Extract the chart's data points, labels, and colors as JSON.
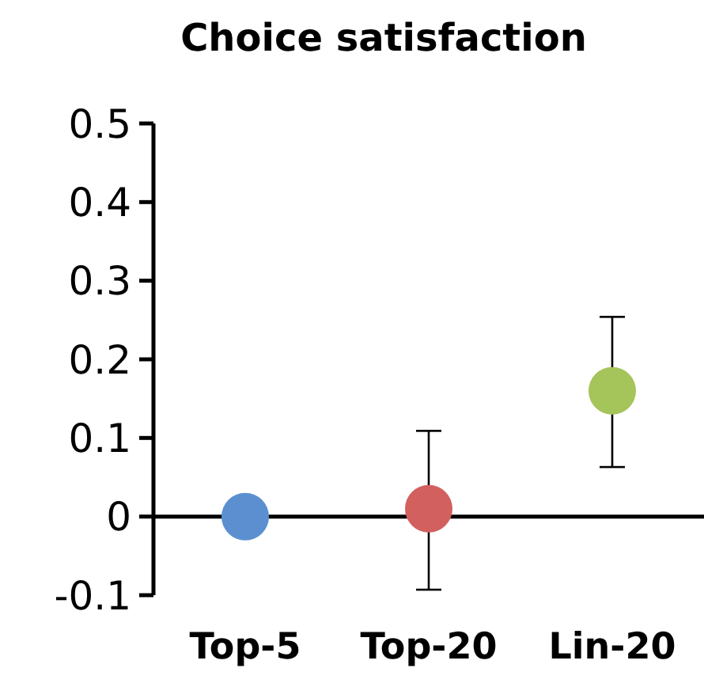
{
  "chart_data": {
    "type": "scatter",
    "title": "Choice satisfaction",
    "categories": [
      "Top-5",
      "Top-20",
      "Lin-20"
    ],
    "values": [
      0,
      0.01,
      0.16
    ],
    "colors": [
      "#5b8fd0",
      "#d2605e",
      "#a5c45a"
    ],
    "errors": [
      null,
      [
        -0.093,
        0.109
      ],
      [
        0.063,
        0.254
      ]
    ],
    "ylim": [
      -0.1,
      0.5
    ],
    "yticks": [
      -0.1,
      0,
      0.1,
      0.2,
      0.3,
      0.4,
      0.5
    ],
    "marker": "circle"
  }
}
